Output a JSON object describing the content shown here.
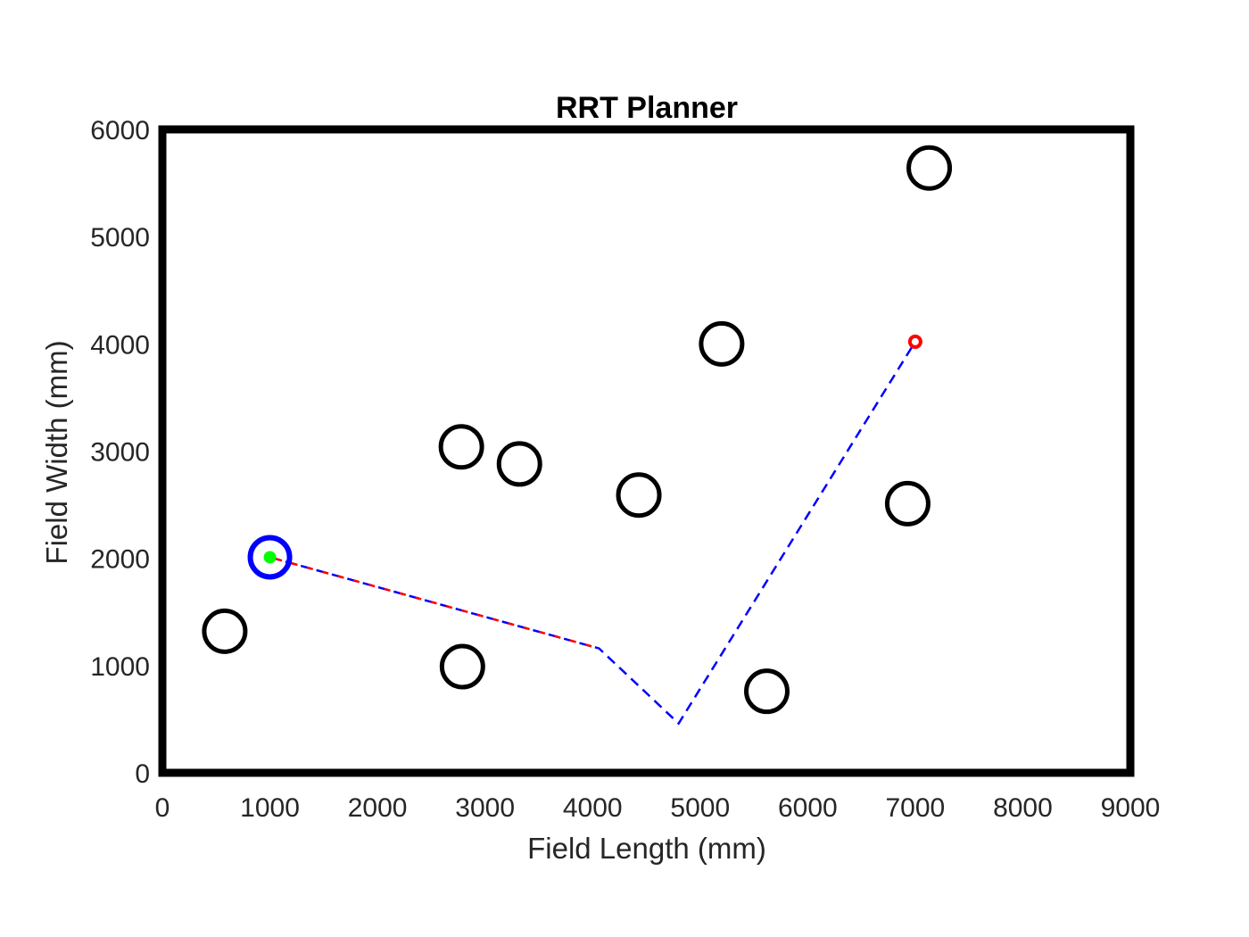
{
  "chart_data": {
    "type": "scatter",
    "title": "RRT Planner",
    "xlabel": "Field Length (mm)",
    "ylabel": "Field Width (mm)",
    "xlim": [
      0,
      9000
    ],
    "ylim": [
      0,
      6000
    ],
    "xticks": [
      0,
      1000,
      2000,
      3000,
      4000,
      5000,
      6000,
      7000,
      8000,
      9000
    ],
    "yticks": [
      0,
      1000,
      2000,
      3000,
      4000,
      5000,
      6000
    ],
    "grid": false,
    "obstacles": [
      {
        "x": 580,
        "y": 1320
      },
      {
        "x": 2780,
        "y": 3040
      },
      {
        "x": 3320,
        "y": 2880
      },
      {
        "x": 2790,
        "y": 990
      },
      {
        "x": 4430,
        "y": 2590
      },
      {
        "x": 5200,
        "y": 4000
      },
      {
        "x": 5620,
        "y": 760
      },
      {
        "x": 6930,
        "y": 2510
      },
      {
        "x": 7130,
        "y": 5640
      }
    ],
    "robot": {
      "x": 1000,
      "y": 2010
    },
    "start": {
      "x": 1000,
      "y": 2010
    },
    "goal": {
      "x": 7000,
      "y": 4020
    },
    "planned_path": {
      "x": [
        1000,
        4060,
        4800,
        7000
      ],
      "y": [
        2010,
        1160,
        460,
        4020
      ]
    },
    "executed_path": {
      "x": [
        1000,
        4060
      ],
      "y": [
        2010,
        1160
      ]
    },
    "colors": {
      "obstacle": "#000000",
      "robot": "#0000ff",
      "start": "#00ff00",
      "goal": "#ff0000",
      "planned_path": "#0000ff",
      "executed_path": "#ff0000",
      "border": "#000000"
    }
  }
}
